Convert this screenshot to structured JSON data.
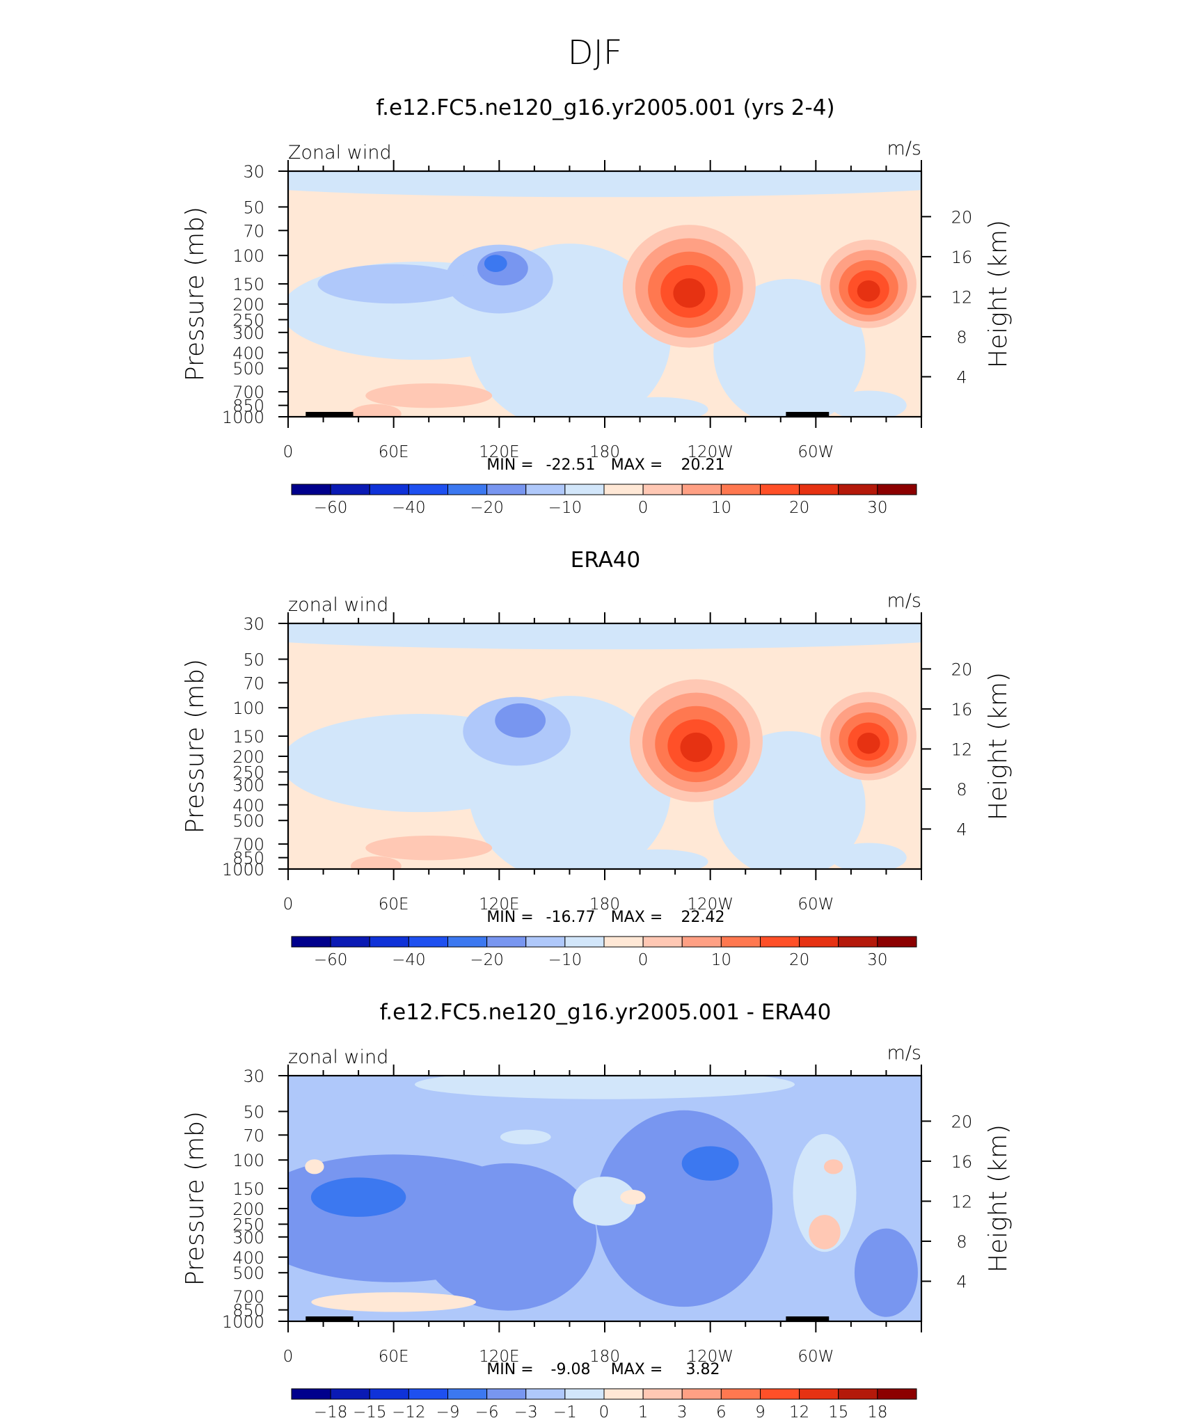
{
  "title": "DJF",
  "chart_data": [
    {
      "type": "heatmap",
      "title": "f.e12.FC5.ne120_g16.yr2005.001 (yrs 2-4)",
      "variable_label": "Zonal wind",
      "units_label": "m/s",
      "ylabel": "Pressure (mb)",
      "ylabel_right": "Height (km)",
      "x_ticks": [
        "0",
        "60E",
        "120E",
        "180",
        "120W",
        "60W"
      ],
      "y_ticks": [
        "30",
        "50",
        "70",
        "100",
        "150",
        "200",
        "250",
        "300",
        "400",
        "500",
        "700",
        "850",
        "1000"
      ],
      "y_ticks_right": [
        "20",
        "16",
        "12",
        "8",
        "4"
      ],
      "min_label": "MIN =",
      "min_value": "-22.51",
      "max_label": "MAX =",
      "max_value": "20.21",
      "colorbar_labels": [
        "-60",
        "-40",
        "-20",
        "-10",
        "0",
        "10",
        "20",
        "30"
      ],
      "features": [
        {
          "kind": "jet",
          "lon": 120,
          "p": 120,
          "peak": -22.51
        },
        {
          "kind": "jet",
          "lon": 228,
          "p": 155,
          "peak": 20.21
        },
        {
          "kind": "jet",
          "lon": 330,
          "p": 150,
          "peak": 15
        }
      ]
    },
    {
      "type": "heatmap",
      "title": "ERA40",
      "variable_label": "zonal wind",
      "units_label": "m/s",
      "ylabel": "Pressure (mb)",
      "ylabel_right": "Height (km)",
      "x_ticks": [
        "0",
        "60E",
        "120E",
        "180",
        "120W",
        "60W"
      ],
      "y_ticks": [
        "30",
        "50",
        "70",
        "100",
        "150",
        "200",
        "250",
        "300",
        "400",
        "500",
        "700",
        "850",
        "1000"
      ],
      "y_ticks_right": [
        "20",
        "16",
        "12",
        "8",
        "4"
      ],
      "min_label": "MIN =",
      "min_value": "-16.77",
      "max_label": "MAX =",
      "max_value": "22.42",
      "colorbar_labels": [
        "-60",
        "-40",
        "-20",
        "-10",
        "0",
        "10",
        "20",
        "30"
      ],
      "features": [
        {
          "kind": "jet",
          "lon": 130,
          "p": 120,
          "peak": -16.77
        },
        {
          "kind": "jet",
          "lon": 232,
          "p": 160,
          "peak": 22.42
        },
        {
          "kind": "jet",
          "lon": 330,
          "p": 150,
          "peak": 16
        }
      ]
    },
    {
      "type": "heatmap",
      "title": "f.e12.FC5.ne120_g16.yr2005.001 - ERA40",
      "variable_label": "zonal wind",
      "units_label": "m/s",
      "ylabel": "Pressure (mb)",
      "ylabel_right": "Height (km)",
      "x_ticks": [
        "0",
        "60E",
        "120E",
        "180",
        "120W",
        "60W"
      ],
      "y_ticks": [
        "30",
        "50",
        "70",
        "100",
        "150",
        "200",
        "250",
        "300",
        "400",
        "500",
        "700",
        "850",
        "1000"
      ],
      "y_ticks_right": [
        "20",
        "16",
        "12",
        "8",
        "4"
      ],
      "min_label": "MIN =",
      "min_value": "-9.08",
      "max_label": "MAX =",
      "max_value": "3.82",
      "colorbar_labels": [
        "-18",
        "-15",
        "-12",
        "-9",
        "-6",
        "-3",
        "-1",
        "0",
        "1",
        "3",
        "6",
        "9",
        "12",
        "15",
        "18"
      ],
      "features": [
        {
          "kind": "anom",
          "lon": 40,
          "p": 170,
          "peak": -9.08
        },
        {
          "kind": "anom",
          "lon": 240,
          "p": 105,
          "peak": -8
        },
        {
          "kind": "anom",
          "lon": 305,
          "p": 280,
          "peak": 3.82
        }
      ]
    }
  ],
  "colors": {
    "mean_palette": [
      "#00008c",
      "#0a1ab4",
      "#0f32d8",
      "#1e50f0",
      "#3c78f0",
      "#7896f0",
      "#afc8fa",
      "#d2e6fa",
      "#ffe8d6",
      "#ffc8b4",
      "#ffa084",
      "#ff7850",
      "#ff5028",
      "#e63212",
      "#b4190a",
      "#8c0000"
    ],
    "diff_palette": [
      "#00008c",
      "#0a1ab4",
      "#0f32d8",
      "#1e50f0",
      "#3c78f0",
      "#7896f0",
      "#afc8fa",
      "#d2e6fa",
      "#ffe8d6",
      "#ffc8b4",
      "#ffa084",
      "#ff7850",
      "#ff5028",
      "#e63212",
      "#b4190a",
      "#8c0000"
    ],
    "mean_background": "#ffe8d6",
    "diff_background": "#afc8fa"
  }
}
